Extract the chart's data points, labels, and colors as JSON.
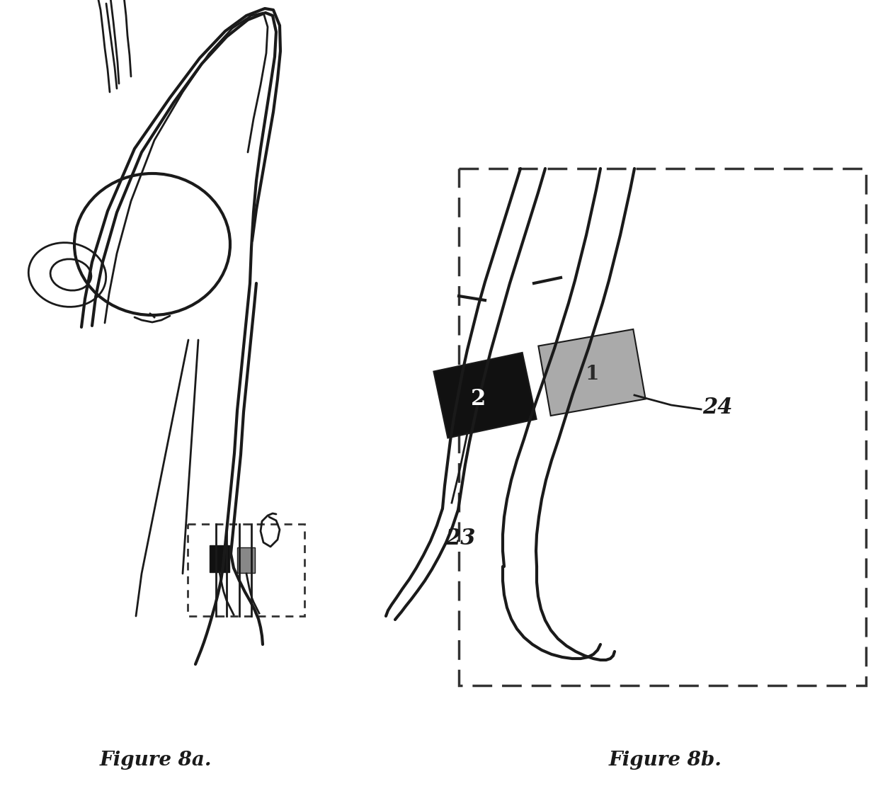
{
  "bg_color": "#ffffff",
  "line_color": "#1a1a1a",
  "fig_label_a": "Figure 8a.",
  "fig_label_b": "Figure 8b.",
  "label_1": "1",
  "label_2": "2",
  "label_23": "23",
  "label_24": "24",
  "dark_box_color": "#111111",
  "gray_box_color": "#aaaaaa",
  "dashed_box_color": "#333333",
  "font_size_labels": 20,
  "font_size_captions": 20
}
